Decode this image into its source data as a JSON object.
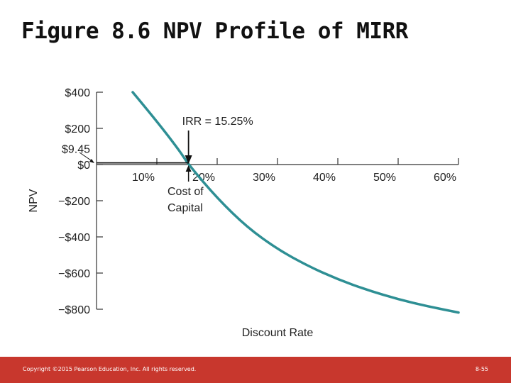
{
  "slide": {
    "title": "Figure 8.6  NPV Profile of MIRR",
    "footer_copyright": "Copyright ©2015 Pearson Education, Inc. All rights reserved.",
    "footer_page": "8-55"
  },
  "colors": {
    "curve": "#2e8f94",
    "axis": "#333333",
    "footer": "#c8372d"
  },
  "chart_data": {
    "type": "line",
    "title": "",
    "xlabel": "Discount Rate",
    "ylabel": "NPV",
    "xlim": [
      0,
      60
    ],
    "ylim": [
      -800,
      400
    ],
    "x_ticks": [
      10,
      20,
      30,
      40,
      50,
      60
    ],
    "x_tick_labels": [
      "10%",
      "20%",
      "30%",
      "40%",
      "50%",
      "60%"
    ],
    "y_ticks": [
      400,
      200,
      9.45,
      0,
      -200,
      -400,
      -600,
      -800
    ],
    "y_tick_labels": [
      "$400",
      "$200",
      "$9.45",
      "$0",
      "−$200",
      "−$400",
      "−$600",
      "−$800"
    ],
    "grid": false,
    "series": [
      {
        "x": [
          6,
          10,
          14,
          15.25,
          20,
          25,
          30,
          35,
          40,
          45,
          50,
          55,
          60
        ],
        "y": [
          400,
          240,
          65,
          0,
          -186,
          -348,
          -468,
          -560,
          -635,
          -695,
          -745,
          -785,
          -818
        ]
      }
    ],
    "annotations": [
      {
        "text": "IRR = 15.25%",
        "x": 15.25,
        "y": 0,
        "arrow": "down"
      },
      {
        "text": "Cost of",
        "x": 15.25,
        "y": 0,
        "arrow": "up"
      },
      {
        "text": "Capital",
        "x": 15.25,
        "y": 0,
        "arrow": "none"
      }
    ],
    "reference_line": {
      "y": 9.45,
      "x_from": 0,
      "x_to": 15.25
    }
  }
}
